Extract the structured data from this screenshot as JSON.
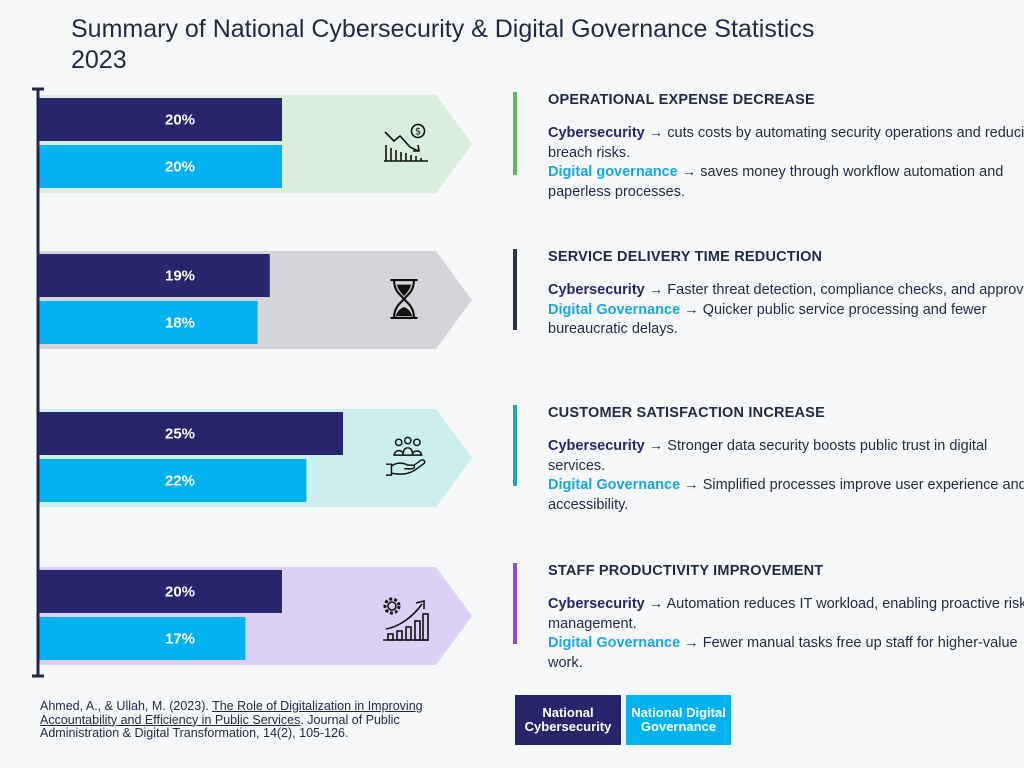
{
  "title": {
    "line1": "Summary of National Cybersecurity & Digital Governance Statistics",
    "line2": "2023"
  },
  "colors": {
    "cybersecurity": "#27256b",
    "digital_governance": "#02b2f0",
    "axis": "#1f2a44"
  },
  "chart_data": {
    "type": "bar",
    "orientation": "horizontal",
    "title": "Summary of National Cybersecurity & Digital Governance Statistics 2023",
    "categories": [
      "Operational Expense Decrease",
      "Service Delivery Time Reduction",
      "Customer Satisfaction Increase",
      "Staff Productivity Improvement"
    ],
    "series": [
      {
        "name": "National Cybersecurity",
        "values": [
          20,
          19,
          25,
          20
        ],
        "color": "#27256b"
      },
      {
        "name": "National Digital Governance",
        "values": [
          20,
          18,
          22,
          17
        ],
        "color": "#02b2f0"
      }
    ],
    "value_suffix": "%",
    "xlim": [
      0,
      40
    ],
    "grid": false,
    "legend": "bottom-center"
  },
  "panels": [
    {
      "heading": "OPERATIONAL EXPENSE DECREASE",
      "band_color": "#d9eedb",
      "accent_color": "#5cb85c",
      "icon": "money-chart-down-icon",
      "cyber_label": "Cybersecurity",
      "cyber_text": " → cuts costs by automating security operations and reducing breach risks.",
      "dg_label": "Digital governance",
      "dg_text": " → saves money through workflow automation and paperless processes."
    },
    {
      "heading": "SERVICE DELIVERY TIME REDUCTION",
      "band_color": "#d4d5d9",
      "accent_color": "#2b3345",
      "icon": "hourglass-icon",
      "cyber_label": "Cybersecurity",
      "cyber_text": " → Faster threat detection, compliance checks, and approvals.",
      "dg_label": "Digital Governance",
      "dg_text": " → Quicker public service processing and fewer bureaucratic delays."
    },
    {
      "heading": "CUSTOMER SATISFACTION INCREASE",
      "band_color": "#cdeeee",
      "accent_color": "#1aa9aa",
      "icon": "hand-people-icon",
      "cyber_label": "Cybersecurity",
      "cyber_text": " → Stronger data security boosts public trust in digital services.",
      "dg_label": "Digital Governance",
      "dg_text": " → Simplified processes improve user experience and accessibility."
    },
    {
      "heading": "STAFF PRODUCTIVITY IMPROVEMENT",
      "band_color": "#dcd0f5",
      "accent_color": "#8a4bd8",
      "icon": "gear-growth-icon",
      "cyber_label": "Cybersecurity",
      "cyber_text": " → Automation reduces IT workload, enabling proactive risk management.",
      "dg_label": "Digital Governance",
      "dg_text": " → Fewer manual tasks free up staff for higher-value work."
    }
  ],
  "citation": {
    "authors": "Ahmed, A., & Ullah, M. (2023). ",
    "article_title": "The Role of Digitalization in Improving Accountability and Efficiency in Public Services",
    "journal": ". Journal of Public Administration & Digital Transformation, 14(2), 105-126."
  },
  "legend": {
    "cyber_label": "National Cybersecurity",
    "dg_label": "National Digital Governance"
  }
}
